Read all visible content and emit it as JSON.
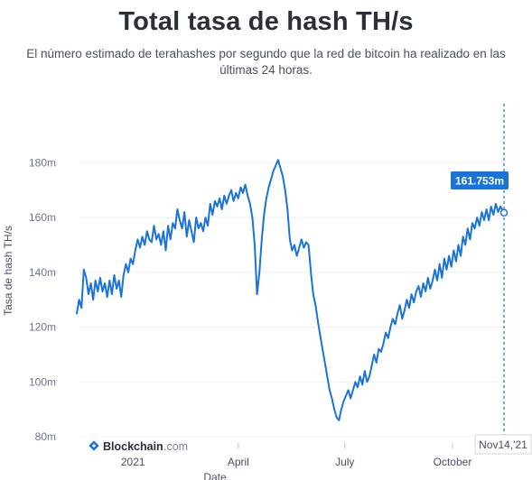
{
  "header": {
    "title": "Total tasa de hash TH/s",
    "subtitle": "El número estimado de terahashes por segundo que la red de bitcoin ha realizado en las últimas 24 horas."
  },
  "brand": {
    "name": "Blockchain",
    "suffix": ".com"
  },
  "tooltip": {
    "value_label": "161.753m"
  },
  "colors": {
    "line": "#1a73d9",
    "tooltip_bg": "#1a73d9",
    "crosshair": "#1a73d9",
    "tick_text": "#6e7690"
  },
  "chart_data": {
    "type": "line",
    "title": "Total tasa de hash TH/s",
    "xlabel": "Date",
    "ylabel": "Tasa de hash TH/s",
    "ylim": [
      80,
      190
    ],
    "xlim": [
      "2020-11-14",
      "2021-11-14"
    ],
    "y_ticks": [
      80,
      100,
      120,
      140,
      160,
      180
    ],
    "y_tick_labels": [
      "80m",
      "100m",
      "120m",
      "140m",
      "160m",
      "180m"
    ],
    "x_ticks": [
      "2021-01-01",
      "2021-04-01",
      "2021-07-01",
      "2021-10-01"
    ],
    "x_tick_labels": [
      "2021",
      "April",
      "July",
      "October"
    ],
    "end_label": "Nov14,'21",
    "grid": "horizontal",
    "series": [
      {
        "values": [
          [
            "2020-11-14",
            125
          ],
          [
            "2020-11-16",
            130
          ],
          [
            "2020-11-18",
            127
          ],
          [
            "2020-11-20",
            141
          ],
          [
            "2020-11-22",
            138
          ],
          [
            "2020-11-24",
            132
          ],
          [
            "2020-11-26",
            136
          ],
          [
            "2020-11-28",
            130
          ],
          [
            "2020-11-30",
            137
          ],
          [
            "2020-12-02",
            133
          ],
          [
            "2020-12-04",
            138
          ],
          [
            "2020-12-06",
            133
          ],
          [
            "2020-12-08",
            136
          ],
          [
            "2020-12-10",
            131
          ],
          [
            "2020-12-12",
            137
          ],
          [
            "2020-12-14",
            132
          ],
          [
            "2020-12-16",
            139
          ],
          [
            "2020-12-18",
            134
          ],
          [
            "2020-12-20",
            137
          ],
          [
            "2020-12-22",
            131
          ],
          [
            "2020-12-24",
            139
          ],
          [
            "2020-12-26",
            143
          ],
          [
            "2020-12-28",
            140
          ],
          [
            "2020-12-30",
            145
          ],
          [
            "2021-01-01",
            143
          ],
          [
            "2021-01-03",
            148
          ],
          [
            "2021-01-05",
            152
          ],
          [
            "2021-01-07",
            149
          ],
          [
            "2021-01-09",
            153
          ],
          [
            "2021-01-11",
            150
          ],
          [
            "2021-01-13",
            155
          ],
          [
            "2021-01-15",
            152
          ],
          [
            "2021-01-17",
            151
          ],
          [
            "2021-01-19",
            157
          ],
          [
            "2021-01-21",
            152
          ],
          [
            "2021-01-23",
            154
          ],
          [
            "2021-01-25",
            150
          ],
          [
            "2021-01-27",
            155
          ],
          [
            "2021-01-29",
            148
          ],
          [
            "2021-01-31",
            157
          ],
          [
            "2021-02-02",
            152
          ],
          [
            "2021-02-04",
            158
          ],
          [
            "2021-02-06",
            156
          ],
          [
            "2021-02-08",
            163
          ],
          [
            "2021-02-10",
            159
          ],
          [
            "2021-02-12",
            156
          ],
          [
            "2021-02-14",
            162
          ],
          [
            "2021-02-16",
            153
          ],
          [
            "2021-02-18",
            159
          ],
          [
            "2021-02-20",
            155
          ],
          [
            "2021-02-22",
            151
          ],
          [
            "2021-02-24",
            160
          ],
          [
            "2021-02-26",
            156
          ],
          [
            "2021-02-28",
            158
          ],
          [
            "2021-03-02",
            155
          ],
          [
            "2021-03-04",
            160
          ],
          [
            "2021-03-06",
            157
          ],
          [
            "2021-03-08",
            165
          ],
          [
            "2021-03-10",
            161
          ],
          [
            "2021-03-12",
            166
          ],
          [
            "2021-03-14",
            164
          ],
          [
            "2021-03-16",
            167
          ],
          [
            "2021-03-18",
            163
          ],
          [
            "2021-03-20",
            168
          ],
          [
            "2021-03-22",
            165
          ],
          [
            "2021-03-24",
            168
          ],
          [
            "2021-03-26",
            170
          ],
          [
            "2021-03-28",
            166
          ],
          [
            "2021-03-30",
            169
          ],
          [
            "2021-04-01",
            167
          ],
          [
            "2021-04-03",
            171
          ],
          [
            "2021-04-05",
            169
          ],
          [
            "2021-04-07",
            172
          ],
          [
            "2021-04-09",
            168
          ],
          [
            "2021-04-11",
            165
          ],
          [
            "2021-04-13",
            160
          ],
          [
            "2021-04-15",
            150
          ],
          [
            "2021-04-17",
            132
          ],
          [
            "2021-04-19",
            140
          ],
          [
            "2021-04-21",
            152
          ],
          [
            "2021-04-23",
            161
          ],
          [
            "2021-04-25",
            167
          ],
          [
            "2021-04-27",
            171
          ],
          [
            "2021-04-29",
            174
          ],
          [
            "2021-05-01",
            177
          ],
          [
            "2021-05-03",
            179
          ],
          [
            "2021-05-05",
            181
          ],
          [
            "2021-05-07",
            178
          ],
          [
            "2021-05-09",
            175
          ],
          [
            "2021-05-11",
            170
          ],
          [
            "2021-05-13",
            163
          ],
          [
            "2021-05-15",
            152
          ],
          [
            "2021-05-17",
            148
          ],
          [
            "2021-05-19",
            150
          ],
          [
            "2021-05-21",
            146
          ],
          [
            "2021-05-23",
            149
          ],
          [
            "2021-05-25",
            152
          ],
          [
            "2021-05-27",
            149
          ],
          [
            "2021-05-29",
            151
          ],
          [
            "2021-05-31",
            150
          ],
          [
            "2021-06-02",
            140
          ],
          [
            "2021-06-04",
            132
          ],
          [
            "2021-06-06",
            128
          ],
          [
            "2021-06-08",
            122
          ],
          [
            "2021-06-10",
            117
          ],
          [
            "2021-06-12",
            112
          ],
          [
            "2021-06-14",
            107
          ],
          [
            "2021-06-16",
            102
          ],
          [
            "2021-06-18",
            97
          ],
          [
            "2021-06-20",
            94
          ],
          [
            "2021-06-22",
            90
          ],
          [
            "2021-06-24",
            87
          ],
          [
            "2021-06-26",
            86
          ],
          [
            "2021-06-28",
            90
          ],
          [
            "2021-06-30",
            93
          ],
          [
            "2021-07-02",
            95
          ],
          [
            "2021-07-04",
            97
          ],
          [
            "2021-07-06",
            94
          ],
          [
            "2021-07-08",
            97
          ],
          [
            "2021-07-10",
            100
          ],
          [
            "2021-07-12",
            98
          ],
          [
            "2021-07-14",
            102
          ],
          [
            "2021-07-16",
            99
          ],
          [
            "2021-07-18",
            104
          ],
          [
            "2021-07-20",
            100
          ],
          [
            "2021-07-22",
            102
          ],
          [
            "2021-07-24",
            106
          ],
          [
            "2021-07-26",
            110
          ],
          [
            "2021-07-28",
            107
          ],
          [
            "2021-07-30",
            112
          ],
          [
            "2021-08-01",
            111
          ],
          [
            "2021-08-03",
            114
          ],
          [
            "2021-08-05",
            118
          ],
          [
            "2021-08-07",
            116
          ],
          [
            "2021-08-09",
            120
          ],
          [
            "2021-08-11",
            123
          ],
          [
            "2021-08-13",
            121
          ],
          [
            "2021-08-15",
            125
          ],
          [
            "2021-08-17",
            128
          ],
          [
            "2021-08-19",
            123
          ],
          [
            "2021-08-21",
            126
          ],
          [
            "2021-08-23",
            130
          ],
          [
            "2021-08-25",
            127
          ],
          [
            "2021-08-27",
            132
          ],
          [
            "2021-08-29",
            129
          ],
          [
            "2021-08-31",
            133
          ],
          [
            "2021-09-02",
            135
          ],
          [
            "2021-09-04",
            131
          ],
          [
            "2021-09-06",
            136
          ],
          [
            "2021-09-08",
            133
          ],
          [
            "2021-09-10",
            138
          ],
          [
            "2021-09-12",
            134
          ],
          [
            "2021-09-14",
            137
          ],
          [
            "2021-09-16",
            141
          ],
          [
            "2021-09-18",
            137
          ],
          [
            "2021-09-20",
            143
          ],
          [
            "2021-09-22",
            138
          ],
          [
            "2021-09-24",
            145
          ],
          [
            "2021-09-26",
            141
          ],
          [
            "2021-09-28",
            146
          ],
          [
            "2021-09-30",
            142
          ],
          [
            "2021-10-02",
            148
          ],
          [
            "2021-10-04",
            144
          ],
          [
            "2021-10-06",
            150
          ],
          [
            "2021-10-08",
            146
          ],
          [
            "2021-10-10",
            153
          ],
          [
            "2021-10-12",
            150
          ],
          [
            "2021-10-14",
            156
          ],
          [
            "2021-10-16",
            152
          ],
          [
            "2021-10-18",
            158
          ],
          [
            "2021-10-20",
            156
          ],
          [
            "2021-10-22",
            160
          ],
          [
            "2021-10-24",
            157
          ],
          [
            "2021-10-26",
            162
          ],
          [
            "2021-10-28",
            159
          ],
          [
            "2021-10-30",
            163
          ],
          [
            "2021-11-01",
            159
          ],
          [
            "2021-11-03",
            164
          ],
          [
            "2021-11-05",
            161
          ],
          [
            "2021-11-07",
            165
          ],
          [
            "2021-11-09",
            162
          ],
          [
            "2021-11-11",
            164
          ],
          [
            "2021-11-14",
            161.753
          ]
        ]
      }
    ]
  }
}
